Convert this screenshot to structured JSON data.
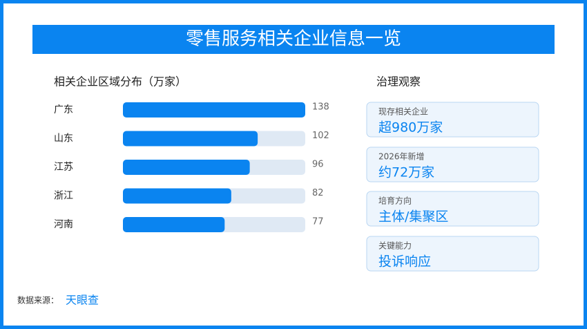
{
  "title": "零售服务相关企业信息一览",
  "chart_data": {
    "type": "bar",
    "orientation": "horizontal",
    "title": "相关企业区域分布（万家）",
    "categories": [
      "广东",
      "山东",
      "江苏",
      "浙江",
      "河南"
    ],
    "values": [
      138,
      102,
      96,
      82,
      77
    ],
    "color": "#0a84f0",
    "track_color": "#dfe9f4",
    "xlim": [
      0,
      138
    ]
  },
  "panel": {
    "title": "治理观察",
    "cards": [
      {
        "label": "现存相关企业",
        "value": "超980万家"
      },
      {
        "label": "2026年新增",
        "value": "约72万家"
      },
      {
        "label": "培育方向",
        "value": "主体/集聚区"
      },
      {
        "label": "关键能力",
        "value": "投诉响应"
      }
    ]
  },
  "source": {
    "label": "数据来源：",
    "value": "天眼查"
  }
}
